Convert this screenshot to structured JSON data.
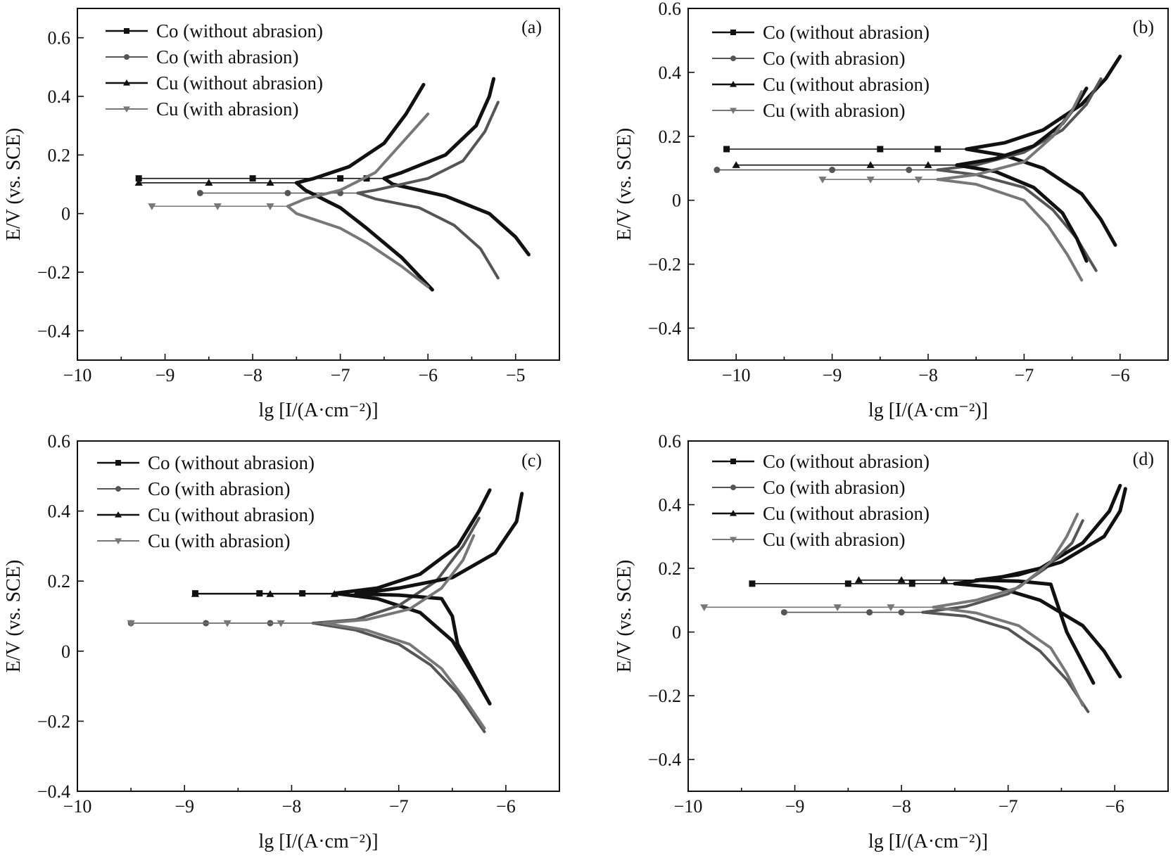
{
  "chart_data": [
    {
      "type": "line",
      "panel": "(a)",
      "xlabel": "lg [I/(A·cm⁻²)]",
      "ylabel": "E/V (vs. SCE)",
      "xlim": [
        -10,
        -4.5
      ],
      "ylim": [
        -0.5,
        0.7
      ],
      "xticks": [
        -10,
        -9,
        -8,
        -7,
        -6,
        -5
      ],
      "yticks": [
        -0.4,
        -0.2,
        0,
        0.2,
        0.4,
        0.6
      ],
      "legend_position": "top-left",
      "series": [
        {
          "name": "Co (without abrasion)",
          "marker": "square",
          "color": "#111111",
          "ecorr": 0.12,
          "icorr": -6.5,
          "anodic": [
            -6.3,
            -5.8,
            -5.45,
            -5.3,
            -5.25
          ],
          "anodic_e": [
            0.14,
            0.2,
            0.3,
            0.4,
            0.46
          ],
          "cathodic": [
            -6.4,
            -5.8,
            -5.3,
            -5.0,
            -4.85
          ],
          "cathodic_e": [
            0.1,
            0.06,
            0.0,
            -0.08,
            -0.14
          ],
          "passive": [
            -9.3,
            -8.0,
            -7.0,
            -6.7
          ]
        },
        {
          "name": "Co (with abrasion)",
          "marker": "circle",
          "color": "#555555",
          "ecorr": 0.07,
          "icorr": -6.8,
          "anodic": [
            -6.6,
            -6.0,
            -5.6,
            -5.35,
            -5.2
          ],
          "anodic_e": [
            0.08,
            0.12,
            0.18,
            0.28,
            0.38
          ],
          "cathodic": [
            -6.6,
            -6.1,
            -5.7,
            -5.4,
            -5.2
          ],
          "cathodic_e": [
            0.05,
            0.02,
            -0.04,
            -0.12,
            -0.22
          ],
          "passive": [
            -8.6,
            -7.6,
            -7.0
          ]
        },
        {
          "name": "Cu (without abrasion)",
          "marker": "triangle-up",
          "color": "#111111",
          "ecorr": 0.105,
          "icorr": -7.5,
          "anodic": [
            -7.3,
            -6.9,
            -6.5,
            -6.25,
            -6.05
          ],
          "anodic_e": [
            0.12,
            0.16,
            0.24,
            0.34,
            0.44
          ],
          "cathodic": [
            -7.4,
            -7.0,
            -6.7,
            -6.3,
            -5.95
          ],
          "cathodic_e": [
            0.08,
            0.02,
            -0.05,
            -0.15,
            -0.26
          ],
          "passive": [
            -9.3,
            -8.5,
            -7.8
          ]
        },
        {
          "name": "Cu (with abrasion)",
          "marker": "triangle-down",
          "color": "#777777",
          "ecorr": 0.025,
          "icorr": -7.6,
          "anodic": [
            -7.4,
            -7.0,
            -6.6,
            -6.3,
            -6.0
          ],
          "anodic_e": [
            0.05,
            0.08,
            0.14,
            0.24,
            0.34
          ],
          "cathodic": [
            -7.5,
            -7.0,
            -6.7,
            -6.3,
            -6.0
          ],
          "cathodic_e": [
            0.0,
            -0.05,
            -0.1,
            -0.18,
            -0.25
          ],
          "passive": [
            -9.15,
            -8.4,
            -7.8
          ]
        }
      ]
    },
    {
      "type": "line",
      "panel": "(b)",
      "xlabel": "lg [I/(A·cm⁻²)]",
      "ylabel": "E/V (vs. SCE)",
      "xlim": [
        -10.5,
        -5.5
      ],
      "ylim": [
        -0.5,
        0.6
      ],
      "xticks": [
        -10,
        -9,
        -8,
        -7,
        -6
      ],
      "yticks": [
        -0.4,
        -0.2,
        0,
        0.2,
        0.4,
        0.6
      ],
      "legend_position": "top-left",
      "series": [
        {
          "name": "Co (without abrasion)",
          "marker": "square",
          "color": "#111111",
          "ecorr": 0.16,
          "icorr": -7.6,
          "anodic": [
            -7.2,
            -6.8,
            -6.4,
            -6.15,
            -6.0
          ],
          "anodic_e": [
            0.18,
            0.22,
            0.3,
            0.38,
            0.45
          ],
          "cathodic": [
            -7.2,
            -6.8,
            -6.4,
            -6.2,
            -6.05
          ],
          "cathodic_e": [
            0.14,
            0.1,
            0.02,
            -0.06,
            -0.14
          ],
          "passive": [
            -10.1,
            -8.5,
            -7.9
          ]
        },
        {
          "name": "Co (with abrasion)",
          "marker": "circle",
          "color": "#555555",
          "ecorr": 0.095,
          "icorr": -7.9,
          "anodic": [
            -7.5,
            -7.0,
            -6.6,
            -6.35,
            -6.2
          ],
          "anodic_e": [
            0.11,
            0.15,
            0.22,
            0.3,
            0.38
          ],
          "cathodic": [
            -7.5,
            -7.0,
            -6.7,
            -6.45,
            -6.25
          ],
          "cathodic_e": [
            0.08,
            0.04,
            -0.03,
            -0.12,
            -0.22
          ],
          "passive": [
            -10.2,
            -9.0,
            -8.2
          ]
        },
        {
          "name": "Cu (without abrasion)",
          "marker": "triangle-up",
          "color": "#111111",
          "ecorr": 0.11,
          "icorr": -7.7,
          "anodic": [
            -7.3,
            -6.9,
            -6.6,
            -6.45,
            -6.35
          ],
          "anodic_e": [
            0.13,
            0.17,
            0.24,
            0.3,
            0.35
          ],
          "cathodic": [
            -7.3,
            -6.9,
            -6.6,
            -6.45,
            -6.35
          ],
          "cathodic_e": [
            0.09,
            0.04,
            -0.04,
            -0.12,
            -0.19
          ],
          "passive": [
            -10.0,
            -8.6,
            -8.0
          ]
        },
        {
          "name": "Cu (with abrasion)",
          "marker": "triangle-down",
          "color": "#777777",
          "ecorr": 0.065,
          "icorr": -7.9,
          "anodic": [
            -7.5,
            -7.0,
            -6.7,
            -6.5,
            -6.4
          ],
          "anodic_e": [
            0.08,
            0.12,
            0.2,
            0.28,
            0.34
          ],
          "cathodic": [
            -7.5,
            -7.0,
            -6.75,
            -6.55,
            -6.4
          ],
          "cathodic_e": [
            0.05,
            0.0,
            -0.08,
            -0.17,
            -0.25
          ],
          "passive": [
            -9.1,
            -8.6,
            -8.1
          ]
        }
      ]
    },
    {
      "type": "line",
      "panel": "(c)",
      "xlabel": "lg [I/(A·cm⁻²)]",
      "ylabel": "E/V (vs. SCE)",
      "xlim": [
        -10,
        -5.5
      ],
      "ylim": [
        -0.4,
        0.6
      ],
      "xticks": [
        -10,
        -9,
        -8,
        -7,
        -6
      ],
      "yticks": [
        -0.4,
        -0.2,
        0,
        0.2,
        0.4,
        0.6
      ],
      "legend_position": "top-left",
      "series": [
        {
          "name": "Co (without abrasion)",
          "marker": "square",
          "color": "#111111",
          "ecorr": 0.165,
          "icorr": -7.6,
          "anodic": [
            -7.2,
            -6.8,
            -6.45,
            -6.25,
            -6.15
          ],
          "anodic_e": [
            0.18,
            0.22,
            0.3,
            0.4,
            0.46
          ],
          "cathodic": [
            -7.2,
            -6.8,
            -6.5,
            -6.3,
            -6.15
          ],
          "cathodic_e": [
            0.15,
            0.11,
            0.03,
            -0.07,
            -0.15
          ],
          "passive": [
            -8.9,
            -8.3,
            -7.9
          ]
        },
        {
          "name": "Co (with abrasion)",
          "marker": "circle",
          "color": "#555555",
          "ecorr": 0.08,
          "icorr": -7.8,
          "anodic": [
            -7.4,
            -7.0,
            -6.65,
            -6.4,
            -6.25
          ],
          "anodic_e": [
            0.09,
            0.13,
            0.2,
            0.3,
            0.38
          ],
          "cathodic": [
            -7.4,
            -7.0,
            -6.7,
            -6.45,
            -6.2
          ],
          "cathodic_e": [
            0.06,
            0.02,
            -0.04,
            -0.12,
            -0.23
          ],
          "passive": [
            -9.5,
            -8.8,
            -8.2
          ]
        },
        {
          "name": "Cu (without abrasion)",
          "marker": "triangle-up",
          "color": "#111111",
          "ecorr": 0.163,
          "icorr": -7.4,
          "anodic": [
            -7.0,
            -6.5,
            -6.1,
            -5.9,
            -5.85
          ],
          "anodic_e": [
            0.18,
            0.21,
            0.28,
            0.37,
            0.45
          ],
          "cathodic": [
            -7.0,
            -6.6,
            -6.5,
            -6.45,
            -6.15
          ],
          "cathodic_e": [
            0.16,
            0.15,
            0.1,
            0.02,
            -0.15
          ],
          "passive": [
            -8.9,
            -8.2,
            -7.6
          ]
        },
        {
          "name": "Cu (with abrasion)",
          "marker": "triangle-down",
          "color": "#777777",
          "ecorr": 0.08,
          "icorr": -7.7,
          "anodic": [
            -7.3,
            -6.9,
            -6.6,
            -6.4,
            -6.3
          ],
          "anodic_e": [
            0.09,
            0.12,
            0.18,
            0.26,
            0.33
          ],
          "cathodic": [
            -7.3,
            -6.9,
            -6.6,
            -6.4,
            -6.2
          ],
          "cathodic_e": [
            0.06,
            0.02,
            -0.05,
            -0.13,
            -0.22
          ],
          "passive": [
            -9.5,
            -8.6,
            -8.1
          ]
        }
      ]
    },
    {
      "type": "line",
      "panel": "(d)",
      "xlabel": "lg [I/(A·cm⁻²)]",
      "ylabel": "E/V (vs. SCE)",
      "xlim": [
        -10,
        -5.5
      ],
      "ylim": [
        -0.5,
        0.6
      ],
      "xticks": [
        -10,
        -9,
        -8,
        -7,
        -6
      ],
      "yticks": [
        -0.4,
        -0.2,
        0,
        0.2,
        0.4,
        0.6
      ],
      "legend_position": "top-left",
      "series": [
        {
          "name": "Co (without abrasion)",
          "marker": "square",
          "color": "#111111",
          "ecorr": 0.152,
          "icorr": -7.5,
          "anodic": [
            -7.1,
            -6.7,
            -6.3,
            -6.05,
            -5.95
          ],
          "anodic_e": [
            0.17,
            0.2,
            0.28,
            0.38,
            0.46
          ],
          "cathodic": [
            -7.1,
            -6.7,
            -6.3,
            -6.1,
            -5.95
          ],
          "cathodic_e": [
            0.14,
            0.1,
            0.02,
            -0.06,
            -0.14
          ],
          "passive": [
            -9.4,
            -8.5,
            -7.9
          ]
        },
        {
          "name": "Co (with abrasion)",
          "marker": "circle",
          "color": "#555555",
          "ecorr": 0.062,
          "icorr": -7.8,
          "anodic": [
            -7.4,
            -7.0,
            -6.65,
            -6.4,
            -6.3
          ],
          "anodic_e": [
            0.08,
            0.12,
            0.2,
            0.28,
            0.35
          ],
          "cathodic": [
            -7.4,
            -7.0,
            -6.7,
            -6.45,
            -6.25
          ],
          "cathodic_e": [
            0.05,
            0.01,
            -0.06,
            -0.15,
            -0.25
          ],
          "passive": [
            -9.1,
            -8.3,
            -8.0
          ]
        },
        {
          "name": "Cu (without abrasion)",
          "marker": "triangle-up",
          "color": "#111111",
          "ecorr": 0.163,
          "icorr": -7.3,
          "anodic": [
            -6.9,
            -6.5,
            -6.1,
            -5.95,
            -5.9
          ],
          "anodic_e": [
            0.18,
            0.22,
            0.3,
            0.38,
            0.45
          ],
          "cathodic": [
            -6.9,
            -6.6,
            -6.55,
            -6.45,
            -6.2
          ],
          "cathodic_e": [
            0.16,
            0.15,
            0.1,
            0.0,
            -0.16
          ],
          "passive": [
            -8.4,
            -8.0,
            -7.6
          ]
        },
        {
          "name": "Cu (with abrasion)",
          "marker": "triangle-down",
          "color": "#777777",
          "ecorr": 0.078,
          "icorr": -7.7,
          "anodic": [
            -7.3,
            -6.9,
            -6.6,
            -6.45,
            -6.35
          ],
          "anodic_e": [
            0.1,
            0.14,
            0.22,
            0.3,
            0.37
          ],
          "cathodic": [
            -7.3,
            -6.9,
            -6.6,
            -6.45,
            -6.3
          ],
          "cathodic_e": [
            0.06,
            0.02,
            -0.05,
            -0.13,
            -0.23
          ],
          "passive": [
            -9.85,
            -8.6,
            -8.1
          ]
        }
      ]
    }
  ],
  "colors": {
    "axis": "#111111",
    "background": "#ffffff"
  }
}
